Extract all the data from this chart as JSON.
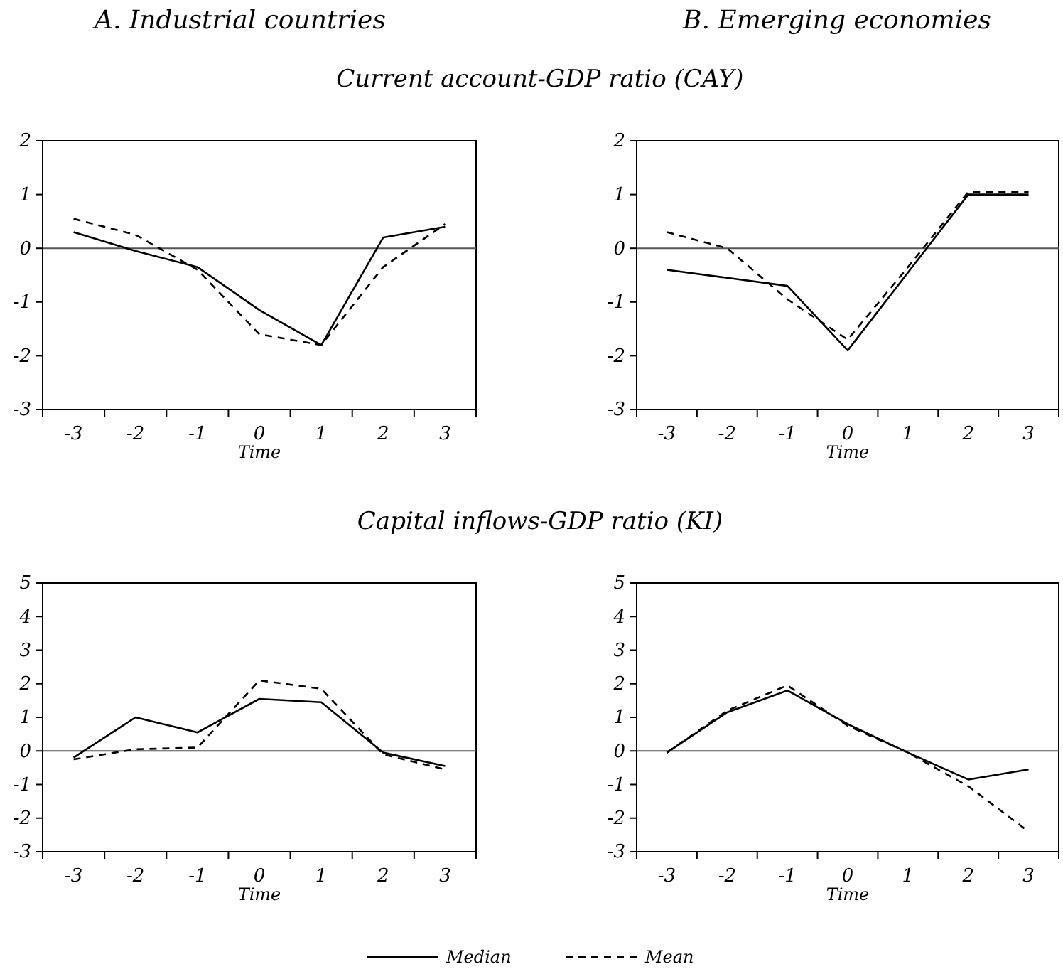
{
  "chart_data": [
    {
      "type": "line",
      "title": "A. Industrial countries",
      "subtitle": "Current account-GDP ratio (CAY)",
      "xlabel": "Time",
      "categories": [
        "-3",
        "-2",
        "-1",
        "0",
        "1",
        "2",
        "3"
      ],
      "ylim": [
        -3,
        2
      ],
      "yticks": [
        -3,
        -2,
        -1,
        0,
        1,
        2
      ],
      "ref_lines": [
        {
          "axis": "y",
          "value": 0
        }
      ],
      "legend": false,
      "series": [
        {
          "color": "#000000",
          "line_style": "solid",
          "values": [
            0.3,
            -0.05,
            -0.35,
            -1.15,
            -1.8,
            0.2,
            0.4
          ]
        },
        {
          "color": "#000000",
          "line_style": "dashed",
          "values": [
            0.55,
            0.25,
            -0.4,
            -1.6,
            -1.8,
            -0.35,
            0.45
          ]
        }
      ]
    },
    {
      "type": "line",
      "title": "B. Emerging economies",
      "xlabel": "Time",
      "categories": [
        "-3",
        "-2",
        "-1",
        "0",
        "1",
        "2",
        "3"
      ],
      "ylim": [
        -3,
        2
      ],
      "yticks": [
        -3,
        -2,
        -1,
        0,
        1,
        2
      ],
      "ref_lines": [
        {
          "axis": "y",
          "value": 0
        }
      ],
      "legend": false,
      "series": [
        {
          "color": "#000000",
          "line_style": "solid",
          "values": [
            -0.4,
            -0.55,
            -0.7,
            -1.9,
            -0.45,
            1.0,
            1.0
          ]
        },
        {
          "color": "#000000",
          "line_style": "dashed",
          "values": [
            0.3,
            0.0,
            -0.95,
            -1.7,
            -0.35,
            1.05,
            1.05
          ]
        }
      ]
    },
    {
      "type": "line",
      "subtitle": "Capital inflows-GDP ratio (KI)",
      "xlabel": "Time",
      "categories": [
        "-3",
        "-2",
        "-1",
        "0",
        "1",
        "2",
        "3"
      ],
      "ylim": [
        -3,
        5
      ],
      "yticks": [
        -3,
        -2,
        -1,
        0,
        1,
        2,
        3,
        4,
        5
      ],
      "ref_lines": [
        {
          "axis": "y",
          "value": 0
        }
      ],
      "legend": false,
      "series": [
        {
          "color": "#000000",
          "line_style": "solid",
          "values": [
            -0.2,
            1.0,
            0.55,
            1.55,
            1.45,
            -0.05,
            -0.45
          ]
        },
        {
          "color": "#000000",
          "line_style": "dashed",
          "values": [
            -0.25,
            0.05,
            0.1,
            2.1,
            1.85,
            -0.1,
            -0.55
          ]
        }
      ]
    },
    {
      "type": "line",
      "xlabel": "Time",
      "categories": [
        "-3",
        "-2",
        "-1",
        "0",
        "1",
        "2",
        "3"
      ],
      "ylim": [
        -3,
        5
      ],
      "yticks": [
        -3,
        -2,
        -1,
        0,
        1,
        2,
        3,
        4,
        5
      ],
      "ref_lines": [
        {
          "axis": "y",
          "value": 0
        }
      ],
      "legend": "bottom",
      "series": [
        {
          "name": "Median",
          "color": "#000000",
          "line_style": "solid",
          "values": [
            -0.05,
            1.15,
            1.8,
            0.8,
            -0.05,
            -0.85,
            -0.55
          ]
        },
        {
          "name": "Mean",
          "color": "#000000",
          "line_style": "dashed",
          "values": [
            -0.05,
            1.2,
            1.95,
            0.75,
            -0.05,
            -1.05,
            -2.4
          ]
        }
      ]
    }
  ]
}
